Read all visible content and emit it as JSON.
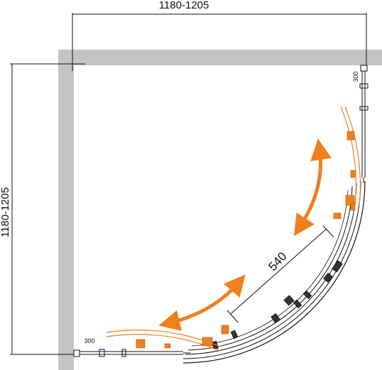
{
  "dimensions": {
    "width_label": "1180-1205",
    "height_label": "1180-1205",
    "door_width_label": "540",
    "fixed_panel_top_label": "300",
    "fixed_panel_bottom_label": "300"
  },
  "colors": {
    "wall": "#c4c4c4",
    "line": "#111111",
    "door_accent": "#f07f1e"
  },
  "icons": {
    "open_arrow_upper": "curved-double-arrow-icon",
    "open_arrow_lower": "curved-double-arrow-icon"
  }
}
